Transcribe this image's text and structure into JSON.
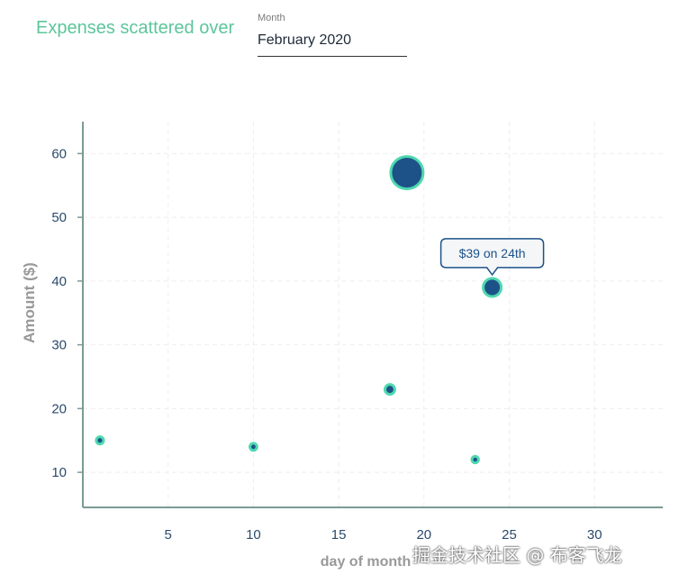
{
  "header": {
    "title": "Expenses scattered over"
  },
  "month_select": {
    "label": "Month",
    "value": "February 2020"
  },
  "tooltip": {
    "text": "$39 on 24th"
  },
  "watermark": {
    "text": "掘金技术社区 @ 布客飞龙"
  },
  "colors": {
    "accent": "#5cc69a",
    "bubble_fill": "#1d5288",
    "bubble_stroke": "#4fd8b0",
    "axis": "#7a9a94",
    "tick_label": "#2b4a6b",
    "grid": "#eeeeee"
  },
  "chart_data": {
    "type": "scatter",
    "title": "",
    "xlabel": "day of month",
    "ylabel": "Amount ($)",
    "xlim": [
      0,
      34
    ],
    "ylim": [
      4.5,
      65
    ],
    "xticks": [
      5,
      10,
      15,
      20,
      25,
      30
    ],
    "yticks": [
      10,
      20,
      30,
      40,
      50,
      60
    ],
    "grid": true,
    "points": [
      {
        "x": 1,
        "y": 15
      },
      {
        "x": 10,
        "y": 14
      },
      {
        "x": 18,
        "y": 23
      },
      {
        "x": 19,
        "y": 57
      },
      {
        "x": 23,
        "y": 12
      },
      {
        "x": 24,
        "y": 39
      }
    ],
    "highlighted_point": 5
  }
}
